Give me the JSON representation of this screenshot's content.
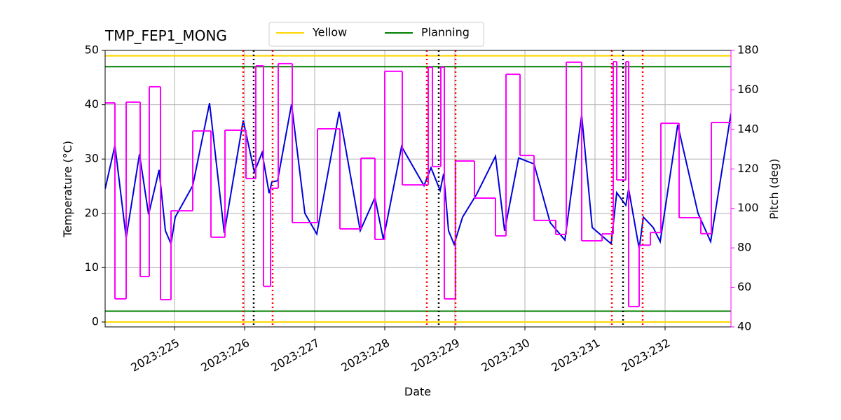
{
  "chart_data": {
    "type": "line",
    "title": "TMP_FEP1_MONG",
    "x_label": "Date",
    "y_label": "Temperature (°C)",
    "y2_label": "Pitch (deg)",
    "y2_color": "#ff00ff",
    "grid": true,
    "legend": "top",
    "xlim": [
      224.01,
      232.94
    ],
    "xticks": [
      {
        "value": 225,
        "label": "2023:225"
      },
      {
        "value": 226,
        "label": "2023:226"
      },
      {
        "value": 227,
        "label": "2023:227"
      },
      {
        "value": 228,
        "label": "2023:228"
      },
      {
        "value": 229,
        "label": "2023:229"
      },
      {
        "value": 230,
        "label": "2023:230"
      },
      {
        "value": 231,
        "label": "2023:231"
      },
      {
        "value": 232,
        "label": "2023:232"
      }
    ],
    "ylim": [
      -0.9,
      50
    ],
    "yticks": [
      0,
      10,
      20,
      30,
      40,
      50
    ],
    "y2lim": [
      40,
      180
    ],
    "y2ticks": [
      40,
      60,
      80,
      100,
      120,
      140,
      160,
      180
    ],
    "limits": [
      {
        "name": "Yellow",
        "color": "#ffd700",
        "values": [
          0,
          49
        ]
      },
      {
        "name": "Planning",
        "color": "#008000",
        "values": [
          2,
          47
        ]
      }
    ],
    "vlines": [
      {
        "color": "#ff0000",
        "x": [
          225.98,
          226.4,
          228.6,
          229.01,
          231.24,
          231.68
        ]
      },
      {
        "color": "#000000",
        "x": [
          226.13,
          228.77,
          231.4
        ]
      }
    ],
    "series": [
      {
        "color": "#0000dd",
        "x": [
          224.01,
          224.15,
          224.31,
          224.5,
          224.63,
          224.78,
          224.87,
          224.95,
          225.01,
          225.26,
          225.5,
          225.71,
          225.98,
          226.14,
          226.25,
          226.35,
          226.39,
          226.47,
          226.67,
          226.86,
          227.03,
          227.35,
          227.65,
          227.86,
          227.98,
          228.24,
          228.56,
          228.66,
          228.79,
          228.84,
          228.91,
          228.99,
          229.11,
          229.31,
          229.58,
          229.71,
          229.91,
          230.13,
          230.36,
          230.57,
          230.81,
          230.96,
          231.23,
          231.31,
          231.44,
          231.48,
          231.63,
          231.69,
          231.83,
          231.93,
          232.18,
          232.47,
          232.65,
          232.94
        ],
        "values": [
          24.5,
          32.5,
          15.5,
          30.9,
          19.8,
          28.0,
          16.8,
          14.4,
          19.3,
          25.1,
          40.3,
          16.4,
          37.1,
          27.6,
          31.2,
          23.7,
          25.8,
          26.0,
          40.1,
          20.0,
          16.2,
          38.7,
          16.8,
          22.9,
          15.2,
          32.3,
          25.1,
          28.4,
          24.2,
          27.3,
          16.8,
          14.3,
          19.3,
          23.5,
          30.5,
          16.8,
          30.2,
          29.1,
          18.3,
          15.1,
          38.1,
          17.4,
          14.4,
          23.8,
          21.5,
          24.5,
          13.5,
          19.3,
          17.4,
          14.8,
          36.3,
          20.0,
          14.8,
          38.4
        ]
      },
      {
        "color": "#ff00ff",
        "axis": "y2",
        "step": true,
        "x": [
          224.01,
          224.15,
          224.31,
          224.51,
          224.64,
          224.8,
          224.95,
          225.26,
          225.52,
          225.72,
          226.02,
          226.16,
          226.27,
          226.37,
          226.48,
          226.68,
          227.04,
          227.36,
          227.66,
          227.86,
          228.0,
          228.25,
          228.62,
          228.68,
          228.8,
          228.85,
          229.01,
          229.28,
          229.58,
          229.73,
          229.93,
          230.13,
          230.44,
          230.59,
          230.81,
          231.1,
          231.26,
          231.31,
          231.44,
          231.48,
          231.63,
          231.79,
          231.94,
          232.2,
          232.51,
          232.66,
          232.94
        ],
        "values": [
          153.4,
          54.2,
          153.8,
          65.5,
          161.6,
          53.8,
          98.8,
          139.2,
          85.4,
          139.6,
          115.1,
          172.2,
          60.5,
          110.2,
          173.3,
          92.8,
          140.3,
          89.6,
          125.4,
          84.3,
          169.4,
          111.9,
          171.5,
          121.2,
          171.5,
          54.2,
          124.0,
          105.2,
          86.1,
          167.9,
          126.8,
          93.9,
          86.8,
          174.0,
          83.6,
          87.1,
          174.3,
          114.4,
          174.3,
          50.3,
          81.4,
          87.8,
          143.1,
          95.3,
          87.2,
          143.5,
          143.5
        ]
      }
    ]
  }
}
